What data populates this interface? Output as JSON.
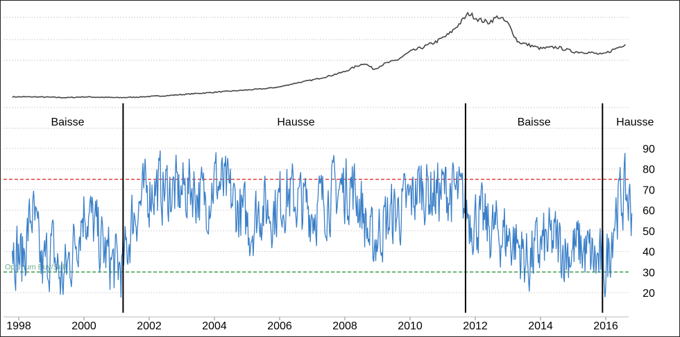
{
  "chart_data": [
    {
      "type": "line",
      "description_role": "price index (top panel, no axis labels)",
      "x_range": [
        1998.0,
        2016.6
      ],
      "series": [
        {
          "color": "#444444",
          "points": [
            [
              1997.8,
              3
            ],
            [
              1998.5,
              3
            ],
            [
              1999.0,
              2.5
            ],
            [
              1999.5,
              2
            ],
            [
              2000.0,
              3
            ],
            [
              2000.5,
              2.5
            ],
            [
              2001.0,
              2
            ],
            [
              2001.5,
              2.5
            ],
            [
              2002.0,
              3.5
            ],
            [
              2002.5,
              4.5
            ],
            [
              2003.0,
              6
            ],
            [
              2003.5,
              7.5
            ],
            [
              2004.0,
              9
            ],
            [
              2004.5,
              10.5
            ],
            [
              2005.0,
              12
            ],
            [
              2005.5,
              13.5
            ],
            [
              2006.0,
              16
            ],
            [
              2006.5,
              21
            ],
            [
              2007.0,
              25
            ],
            [
              2007.5,
              30
            ],
            [
              2008.0,
              36
            ],
            [
              2008.3,
              42
            ],
            [
              2008.6,
              47
            ],
            [
              2008.9,
              39
            ],
            [
              2009.2,
              46
            ],
            [
              2009.6,
              51
            ],
            [
              2010.0,
              62
            ],
            [
              2010.4,
              68
            ],
            [
              2010.8,
              75
            ],
            [
              2011.2,
              85
            ],
            [
              2011.5,
              98
            ],
            [
              2011.8,
              112
            ],
            [
              2012.1,
              104
            ],
            [
              2012.4,
              100
            ],
            [
              2012.7,
              108
            ],
            [
              2013.0,
              99
            ],
            [
              2013.3,
              75
            ],
            [
              2013.7,
              70
            ],
            [
              2014.0,
              66
            ],
            [
              2014.5,
              68
            ],
            [
              2015.0,
              62
            ],
            [
              2015.5,
              61
            ],
            [
              2015.9,
              58
            ],
            [
              2016.2,
              64
            ],
            [
              2016.6,
              72
            ]
          ]
        }
      ]
    },
    {
      "type": "line",
      "description_role": "sentiment oscillator (bottom panel)",
      "x_range": [
        1997.8,
        2016.9
      ],
      "ylim": [
        13,
        93
      ],
      "yticks": [
        20,
        30,
        40,
        50,
        60,
        70,
        80,
        90
      ],
      "xticks": [
        "1998",
        "2000",
        "2002",
        "2004",
        "2006",
        "2008",
        "2010",
        "2012",
        "2014",
        "2016"
      ],
      "x_tick_values": [
        1998,
        2000,
        2002,
        2004,
        2006,
        2008,
        2010,
        2012,
        2014,
        2016
      ],
      "reference_lines": [
        {
          "y": 75,
          "color": "#e03030",
          "style": "dashed"
        },
        {
          "y": 30,
          "color": "#1f8a2a",
          "style": "dashed",
          "label": "Optimum Buy/Sell"
        }
      ],
      "phase_dividers": [
        2001.2,
        2011.7,
        2015.9
      ],
      "phases": [
        {
          "label": "Baisse",
          "x": 1999.5
        },
        {
          "label": "Hausse",
          "x": 2006.5
        },
        {
          "label": "Baisse",
          "x": 2013.8
        },
        {
          "label": "Hausse",
          "x": 2016.9
        }
      ],
      "series": [
        {
          "color": "#3a7fc8",
          "anchors": [
            [
              1997.8,
              45
            ],
            [
              1998.1,
              35
            ],
            [
              1998.4,
              60
            ],
            [
              1998.7,
              30
            ],
            [
              1999.0,
              42
            ],
            [
              1999.3,
              25
            ],
            [
              1999.6,
              38
            ],
            [
              2000.0,
              62
            ],
            [
              2000.3,
              52
            ],
            [
              2000.6,
              40
            ],
            [
              2000.9,
              33
            ],
            [
              2001.2,
              32
            ],
            [
              2001.5,
              58
            ],
            [
              2001.8,
              65
            ],
            [
              2002.1,
              72
            ],
            [
              2002.5,
              70
            ],
            [
              2002.9,
              68
            ],
            [
              2003.3,
              72
            ],
            [
              2003.7,
              64
            ],
            [
              2004.0,
              75
            ],
            [
              2004.4,
              68
            ],
            [
              2004.8,
              58
            ],
            [
              2005.1,
              52
            ],
            [
              2005.4,
              62
            ],
            [
              2005.8,
              60
            ],
            [
              2006.2,
              68
            ],
            [
              2006.6,
              64
            ],
            [
              2007.0,
              60
            ],
            [
              2007.4,
              65
            ],
            [
              2007.8,
              70
            ],
            [
              2008.2,
              72
            ],
            [
              2008.5,
              62
            ],
            [
              2008.8,
              42
            ],
            [
              2009.1,
              52
            ],
            [
              2009.5,
              58
            ],
            [
              2009.9,
              62
            ],
            [
              2010.3,
              72
            ],
            [
              2010.7,
              68
            ],
            [
              2011.1,
              70
            ],
            [
              2011.5,
              66
            ],
            [
              2011.8,
              58
            ],
            [
              2012.1,
              55
            ],
            [
              2012.5,
              50
            ],
            [
              2012.9,
              48
            ],
            [
              2013.2,
              45
            ],
            [
              2013.6,
              35
            ],
            [
              2014.0,
              42
            ],
            [
              2014.4,
              45
            ],
            [
              2014.8,
              40
            ],
            [
              2015.2,
              42
            ],
            [
              2015.6,
              36
            ],
            [
              2016.0,
              32
            ],
            [
              2016.3,
              62
            ],
            [
              2016.6,
              68
            ],
            [
              2016.8,
              60
            ]
          ]
        }
      ]
    }
  ]
}
